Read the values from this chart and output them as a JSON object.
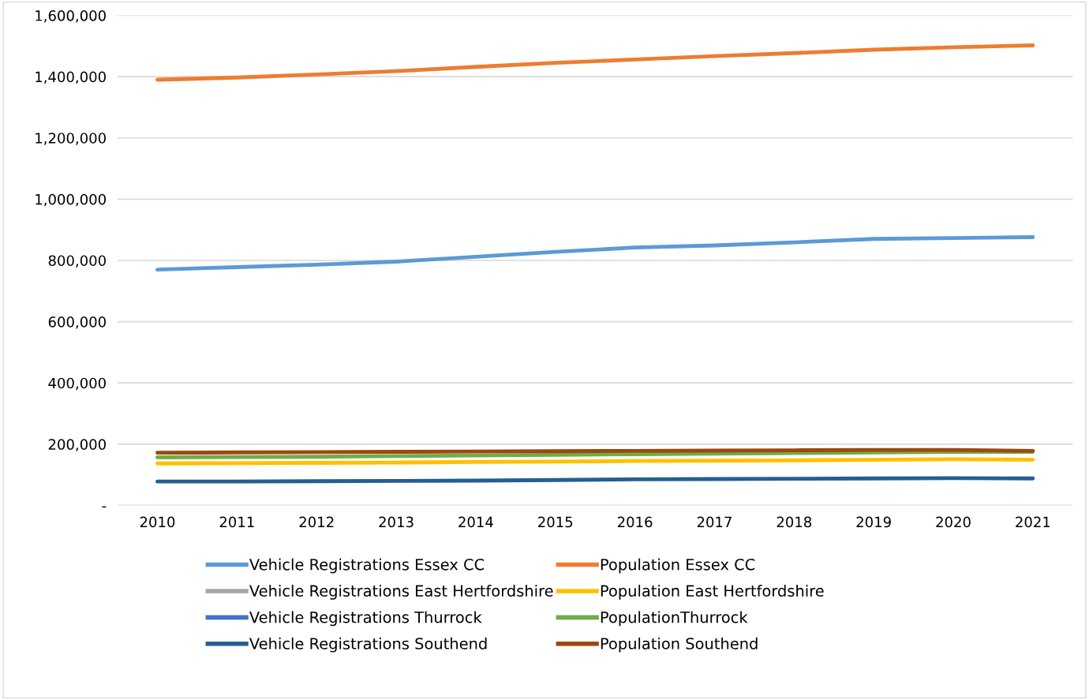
{
  "chart_data": {
    "type": "line",
    "categories": [
      "2010",
      "2011",
      "2012",
      "2013",
      "2014",
      "2015",
      "2016",
      "2017",
      "2018",
      "2019",
      "2020",
      "2021"
    ],
    "ylim": [
      0,
      1600000
    ],
    "yticks": [
      {
        "value": 0,
        "label": "-"
      },
      {
        "value": 200000,
        "label": "200,000"
      },
      {
        "value": 400000,
        "label": "400,000"
      },
      {
        "value": 600000,
        "label": "600,000"
      },
      {
        "value": 800000,
        "label": "800,000"
      },
      {
        "value": 1000000,
        "label": "1,000,000"
      },
      {
        "value": 1200000,
        "label": "1,200,000"
      },
      {
        "value": 1400000,
        "label": "1,400,000"
      },
      {
        "value": 1600000,
        "label": "1,600,000"
      }
    ],
    "grid": "y",
    "legend": "bottom",
    "marker": "none",
    "line_style": "solid",
    "series": [
      {
        "name": "Vehicle Registrations Essex CC",
        "color": "#5b9bd5",
        "values": [
          770000,
          778000,
          786000,
          796000,
          812000,
          828000,
          842000,
          849000,
          859000,
          870000,
          873000,
          876000
        ]
      },
      {
        "name": "Population Essex CC",
        "color": "#ed7d31",
        "values": [
          1390000,
          1397000,
          1407000,
          1418000,
          1432000,
          1445000,
          1456000,
          1467000,
          1477000,
          1488000,
          1496000,
          1502000
        ]
      },
      {
        "name": "Vehicle Registrations East Hertfordshire",
        "color": "#a5a5a5",
        "values": [
          null,
          null,
          null,
          null,
          null,
          null,
          null,
          null,
          null,
          null,
          null,
          null
        ]
      },
      {
        "name": "Population East Hertfordshire",
        "color": "#ffc000",
        "values": [
          137000,
          138000,
          139000,
          140000,
          142000,
          143000,
          145000,
          146000,
          147000,
          149000,
          151000,
          149000
        ]
      },
      {
        "name": "Vehicle Registrations Thurrock",
        "color": "#4472c4",
        "values": [
          null,
          null,
          null,
          null,
          null,
          null,
          null,
          null,
          null,
          null,
          null,
          null
        ]
      },
      {
        "name": "PopulationThurrock",
        "color": "#70ad47",
        "values": [
          157000,
          158000,
          159000,
          161000,
          163000,
          165000,
          167000,
          169000,
          171000,
          173000,
          175000,
          175000
        ]
      },
      {
        "name": "Vehicle Registrations Southend",
        "color": "#255e91",
        "values": [
          78000,
          78000,
          79000,
          80000,
          81000,
          83000,
          85000,
          86000,
          87000,
          88000,
          89000,
          88000
        ]
      },
      {
        "name": "Population Southend",
        "color": "#9e480e",
        "values": [
          172000,
          173000,
          174000,
          175000,
          176000,
          177000,
          178000,
          179000,
          180000,
          181000,
          181000,
          178000
        ]
      }
    ]
  }
}
